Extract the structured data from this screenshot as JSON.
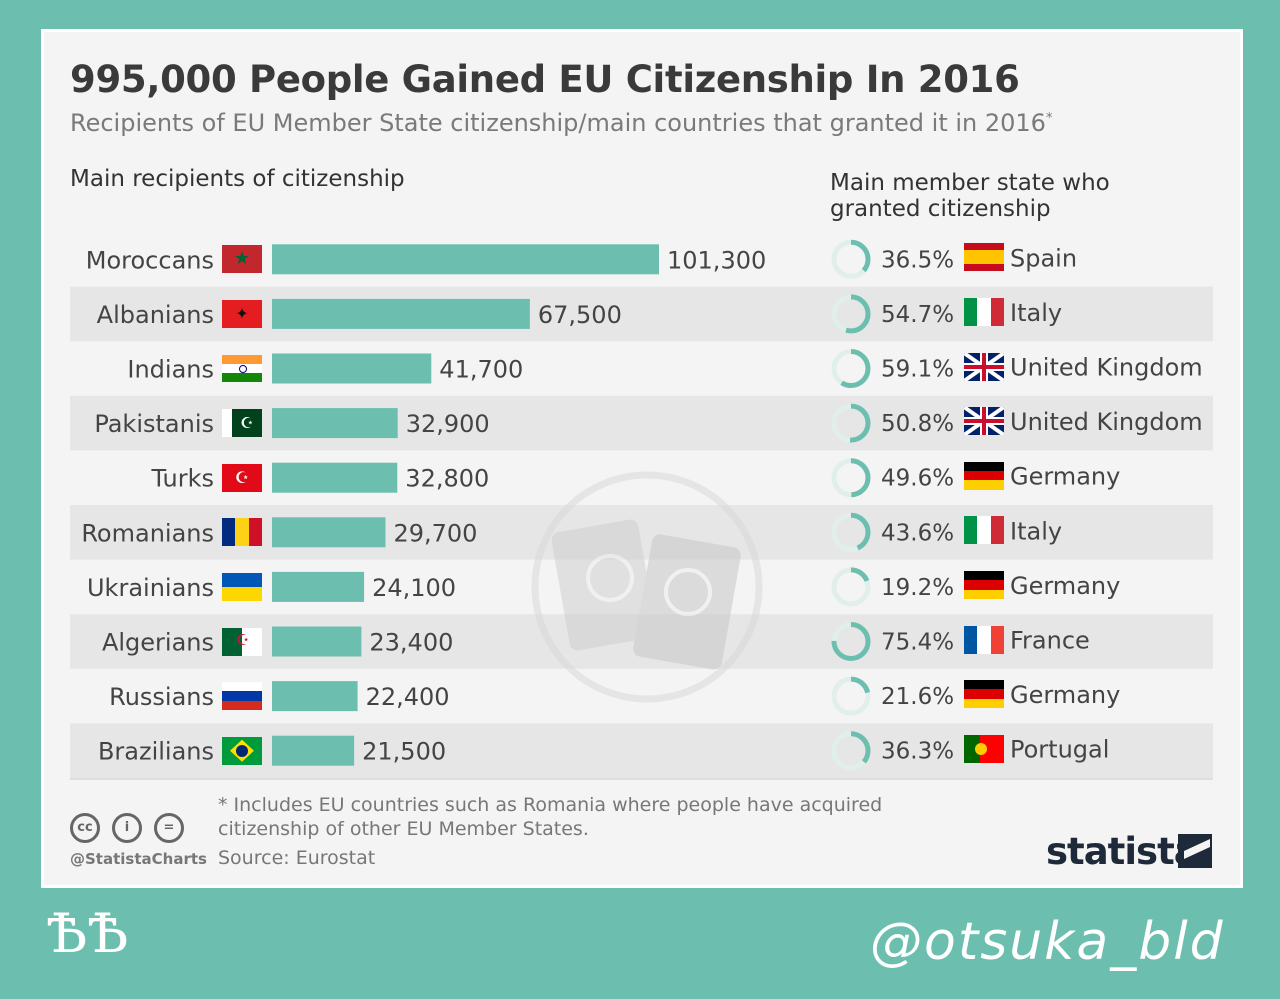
{
  "header": {
    "title": "995,000 People Gained EU Citizenship In 2016",
    "subtitle": "Recipients of EU Member State citizenship/main countries that granted it in 2016",
    "subtitle_mark": "*"
  },
  "sections": {
    "left_heading": "Main recipients of citizenship",
    "right_heading": "Main member state who granted citizenship"
  },
  "colors": {
    "bar": "#6cbfae",
    "ring_track": "#e1efeb",
    "ring_fill": "#6cbfae",
    "stripe": "#e6e6e6",
    "background": "#6cbfae"
  },
  "chart_data": {
    "type": "bar",
    "orientation": "horizontal",
    "categories": [
      "Moroccans",
      "Albanians",
      "Indians",
      "Pakistanis",
      "Turks",
      "Romanians",
      "Ukrainians",
      "Algerians",
      "Russians",
      "Brazilians"
    ],
    "values": [
      101300,
      67500,
      41700,
      32900,
      32800,
      29700,
      24100,
      23400,
      22400,
      21500
    ],
    "value_labels": [
      "101,300",
      "67,500",
      "41,700",
      "32,900",
      "32,800",
      "29,700",
      "24,100",
      "23,400",
      "22,400",
      "21,500"
    ],
    "flags": [
      "morocco",
      "albania",
      "india",
      "pakistan",
      "turkey",
      "romania",
      "ukraine",
      "algeria",
      "russia",
      "brazil"
    ],
    "granting": [
      {
        "share": 36.5,
        "label": "36.5%",
        "country": "Spain",
        "flag": "spain"
      },
      {
        "share": 54.7,
        "label": "54.7%",
        "country": "Italy",
        "flag": "italy"
      },
      {
        "share": 59.1,
        "label": "59.1%",
        "country": "United Kingdom",
        "flag": "uk"
      },
      {
        "share": 50.8,
        "label": "50.8%",
        "country": "United Kingdom",
        "flag": "uk"
      },
      {
        "share": 49.6,
        "label": "49.6%",
        "country": "Germany",
        "flag": "germany"
      },
      {
        "share": 43.6,
        "label": "43.6%",
        "country": "Italy",
        "flag": "italy"
      },
      {
        "share": 19.2,
        "label": "19.2%",
        "country": "Germany",
        "flag": "germany"
      },
      {
        "share": 75.4,
        "label": "75.4%",
        "country": "France",
        "flag": "france"
      },
      {
        "share": 21.6,
        "label": "21.6%",
        "country": "Germany",
        "flag": "germany"
      },
      {
        "share": 36.3,
        "label": "36.3%",
        "country": "Portugal",
        "flag": "portugal"
      }
    ]
  },
  "footer": {
    "footnote": "* Includes EU countries such as Romania where people have acquired citizenship of other EU Member States.",
    "source": "Source: Eurostat",
    "handle": "@StatistaCharts",
    "cc_icons": [
      "cc",
      "by",
      "nd"
    ],
    "cc_labels": [
      "cc",
      "i",
      "="
    ],
    "brand": "statista"
  },
  "watermarks": {
    "bottom_left": "ѢѢ",
    "bottom_right": "@otsuka_bld"
  }
}
